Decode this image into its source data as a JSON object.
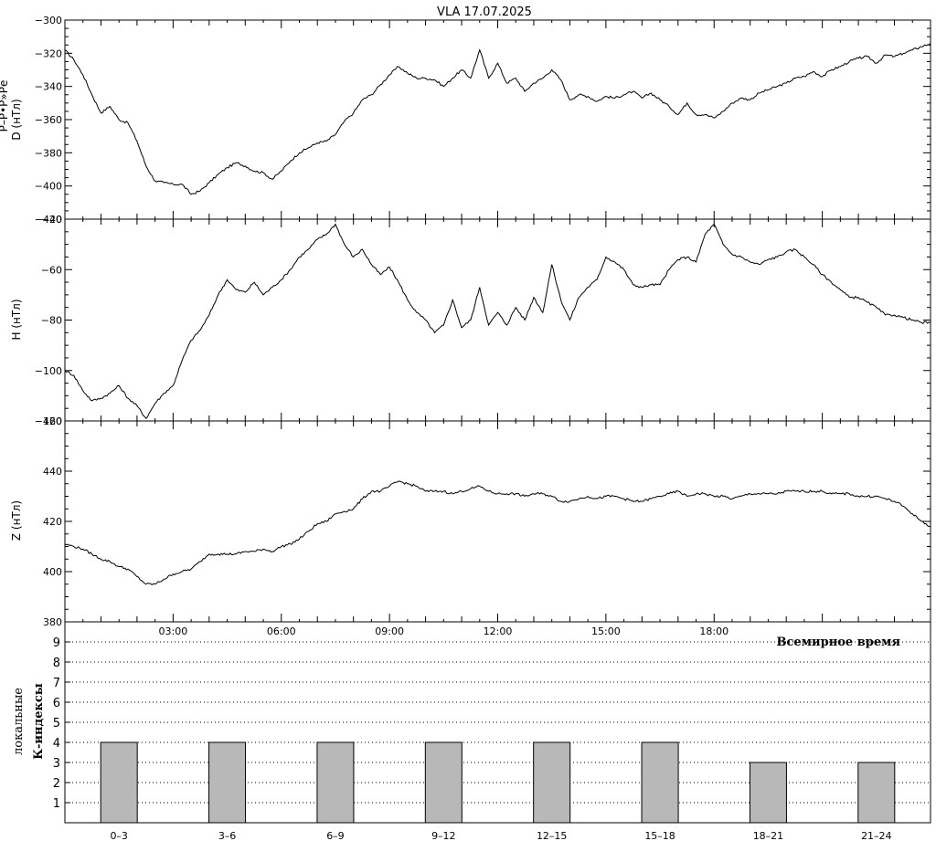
{
  "title": "VLA   17.07.2025",
  "chart_data": [
    {
      "type": "line",
      "panel": "D",
      "ylabel_lines": [
        "Р–Р•Р»Рё",
        "D (нТл)"
      ],
      "ylabel": "D (нТл)",
      "x_unit": "hours UT",
      "xlim": [
        0,
        24
      ],
      "ylim": [
        -420,
        -300
      ],
      "yticks": [
        -420,
        -400,
        -380,
        -360,
        -340,
        -320,
        -300
      ],
      "series": [
        {
          "x": [
            0,
            0.25,
            0.5,
            0.75,
            1.0,
            1.25,
            1.5,
            1.75,
            2.0,
            2.25,
            2.5,
            2.75,
            3.0,
            3.25,
            3.5,
            3.75,
            4.0,
            4.25,
            4.5,
            4.75,
            5.0,
            5.25,
            5.5,
            5.75,
            6.0,
            6.25,
            6.5,
            6.75,
            7.0,
            7.25,
            7.5,
            7.75,
            8.0,
            8.25,
            8.5,
            8.75,
            9.0,
            9.25,
            9.5,
            9.75,
            10.0,
            10.25,
            10.5,
            10.75,
            11.0,
            11.25,
            11.5,
            11.75,
            12.0,
            12.25,
            12.5,
            12.75,
            13.0,
            13.25,
            13.5,
            13.75,
            14.0,
            14.25,
            14.5,
            14.75,
            15.0,
            15.25,
            15.5,
            15.75,
            16.0,
            16.25,
            16.5,
            16.75,
            17.0,
            17.25,
            17.5,
            17.75,
            18.0,
            18.25,
            18.5,
            18.75,
            19.0,
            19.25,
            19.5,
            19.75,
            20.0,
            20.25,
            20.5,
            20.75,
            21.0,
            21.25,
            21.5,
            21.75,
            22.0,
            22.25,
            22.5,
            22.75,
            23.0,
            23.25,
            23.5,
            23.75,
            24.0
          ],
          "y": [
            -318,
            -324,
            -333,
            -345,
            -356,
            -352,
            -360,
            -362,
            -373,
            -388,
            -397,
            -398,
            -399,
            -399,
            -405,
            -403,
            -398,
            -393,
            -389,
            -386,
            -388,
            -391,
            -392,
            -396,
            -391,
            -385,
            -380,
            -377,
            -374,
            -373,
            -369,
            -361,
            -356,
            -348,
            -345,
            -339,
            -333,
            -328,
            -332,
            -335,
            -335,
            -336,
            -340,
            -335,
            -330,
            -335,
            -318,
            -335,
            -326,
            -338,
            -335,
            -343,
            -338,
            -335,
            -330,
            -336,
            -348,
            -345,
            -346,
            -349,
            -346,
            -347,
            -345,
            -343,
            -347,
            -344,
            -348,
            -352,
            -357,
            -350,
            -357,
            -357,
            -359,
            -355,
            -350,
            -347,
            -348,
            -344,
            -342,
            -340,
            -338,
            -335,
            -334,
            -331,
            -334,
            -330,
            -328,
            -325,
            -323,
            -322,
            -326,
            -321,
            -322,
            -320,
            -318,
            -316,
            -314
          ]
        }
      ]
    },
    {
      "type": "line",
      "panel": "H",
      "ylabel": "H (нТл)",
      "x_unit": "hours UT",
      "xlim": [
        0,
        24
      ],
      "ylim": [
        -120,
        -40
      ],
      "yticks": [
        -120,
        -100,
        -80,
        -60,
        -40
      ],
      "series": [
        {
          "x": [
            0,
            0.25,
            0.5,
            0.75,
            1.0,
            1.25,
            1.5,
            1.75,
            2.0,
            2.25,
            2.5,
            2.75,
            3.0,
            3.25,
            3.5,
            3.75,
            4.0,
            4.25,
            4.5,
            4.75,
            5.0,
            5.25,
            5.5,
            5.75,
            6.0,
            6.25,
            6.5,
            6.75,
            7.0,
            7.25,
            7.5,
            7.75,
            8.0,
            8.25,
            8.5,
            8.75,
            9.0,
            9.25,
            9.5,
            9.75,
            10.0,
            10.25,
            10.5,
            10.75,
            11.0,
            11.25,
            11.5,
            11.75,
            12.0,
            12.25,
            12.5,
            12.75,
            13.0,
            13.25,
            13.5,
            13.75,
            14.0,
            14.25,
            14.5,
            14.75,
            15.0,
            15.25,
            15.5,
            15.75,
            16.0,
            16.25,
            16.5,
            16.75,
            17.0,
            17.25,
            17.5,
            17.75,
            18.0,
            18.25,
            18.5,
            18.75,
            19.0,
            19.25,
            19.5,
            19.75,
            20.0,
            20.25,
            20.5,
            20.75,
            21.0,
            21.25,
            21.5,
            21.75,
            22.0,
            22.25,
            22.5,
            22.75,
            23.0,
            23.25,
            23.5,
            23.75,
            24.0
          ],
          "y": [
            -100,
            -102,
            -108,
            -112,
            -111,
            -109,
            -106,
            -111,
            -114,
            -119,
            -113,
            -109,
            -106,
            -96,
            -88,
            -84,
            -78,
            -70,
            -64,
            -68,
            -69,
            -65,
            -70,
            -67,
            -64,
            -60,
            -55,
            -52,
            -48,
            -46,
            -42,
            -50,
            -55,
            -52,
            -58,
            -62,
            -59,
            -65,
            -72,
            -77,
            -80,
            -85,
            -82,
            -72,
            -83,
            -80,
            -67,
            -82,
            -77,
            -82,
            -75,
            -80,
            -71,
            -77,
            -58,
            -72,
            -80,
            -71,
            -67,
            -64,
            -55,
            -57,
            -60,
            -66,
            -67,
            -66,
            -66,
            -60,
            -56,
            -55,
            -57,
            -46,
            -42,
            -50,
            -54,
            -55,
            -57,
            -58,
            -56,
            -55,
            -53,
            -52,
            -55,
            -58,
            -62,
            -65,
            -68,
            -71,
            -71,
            -73,
            -75,
            -78,
            -78,
            -79,
            -80,
            -81,
            -81
          ]
        }
      ]
    },
    {
      "type": "line",
      "panel": "Z",
      "ylabel": "Z (нТл)",
      "x_unit": "hours UT",
      "xlim": [
        0,
        24
      ],
      "ylim": [
        380,
        460
      ],
      "yticks": [
        380,
        400,
        420,
        440,
        460
      ],
      "xticks": [
        "03:00",
        "06:00",
        "09:00",
        "12:00",
        "15:00",
        "18:00"
      ],
      "xlabel": "Всемирное время",
      "series": [
        {
          "x": [
            0,
            0.25,
            0.5,
            0.75,
            1.0,
            1.25,
            1.5,
            1.75,
            2.0,
            2.25,
            2.5,
            2.75,
            3.0,
            3.25,
            3.5,
            3.75,
            4.0,
            4.25,
            4.5,
            4.75,
            5.0,
            5.25,
            5.5,
            5.75,
            6.0,
            6.25,
            6.5,
            6.75,
            7.0,
            7.25,
            7.5,
            7.75,
            8.0,
            8.25,
            8.5,
            8.75,
            9.0,
            9.25,
            9.5,
            9.75,
            10.0,
            10.25,
            10.5,
            10.75,
            11.0,
            11.25,
            11.5,
            11.75,
            12.0,
            12.25,
            12.5,
            12.75,
            13.0,
            13.25,
            13.5,
            13.75,
            14.0,
            14.25,
            14.5,
            14.75,
            15.0,
            15.25,
            15.5,
            15.75,
            16.0,
            16.25,
            16.5,
            16.75,
            17.0,
            17.25,
            17.5,
            17.75,
            18.0,
            18.25,
            18.5,
            18.75,
            19.0,
            19.25,
            19.5,
            19.75,
            20.0,
            20.25,
            20.5,
            20.75,
            21.0,
            21.25,
            21.5,
            21.75,
            22.0,
            22.25,
            22.5,
            22.75,
            23.0,
            23.25,
            23.5,
            23.75,
            24.0
          ],
          "y": [
            411,
            410,
            409,
            407,
            405,
            404,
            402,
            401,
            398,
            395,
            395,
            397,
            399,
            400,
            401,
            404,
            407,
            407,
            407,
            407,
            408,
            408,
            409,
            408,
            410,
            411,
            413,
            416,
            419,
            420,
            423,
            424,
            425,
            429,
            432,
            432,
            434,
            436,
            435,
            434,
            432,
            432,
            432,
            431,
            432,
            433,
            434,
            432,
            431,
            431,
            431,
            430,
            431,
            431,
            430,
            428,
            428,
            429,
            430,
            429,
            430,
            430,
            429,
            428,
            428,
            429,
            430,
            431,
            432,
            430,
            431,
            431,
            430,
            430,
            429,
            430,
            431,
            431,
            431,
            431,
            432,
            432,
            432,
            432,
            432,
            431,
            431,
            431,
            430,
            430,
            430,
            429,
            428,
            426,
            423,
            420,
            418
          ]
        }
      ]
    },
    {
      "type": "bar",
      "panel": "K",
      "ylabel_lines": [
        "локальные",
        "К-индексы"
      ],
      "categories": [
        "0–3",
        "3–6",
        "6–9",
        "9–12",
        "12–15",
        "15–18",
        "18–21",
        "21–24"
      ],
      "values": [
        4,
        4,
        4,
        4,
        4,
        4,
        3,
        3
      ],
      "ylim": [
        0,
        10
      ],
      "yticks": [
        1,
        2,
        3,
        4,
        5,
        6,
        7,
        8,
        9
      ],
      "grid": true,
      "bar_color": "#b8b8b8"
    }
  ]
}
